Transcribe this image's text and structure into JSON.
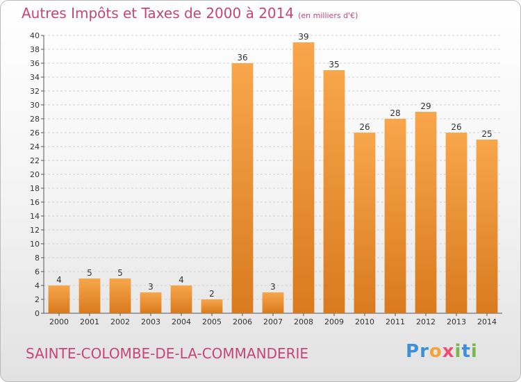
{
  "title": "Autres Impôts et Taxes de 2000 à 2014",
  "subtitle": "(en milliers d'€)",
  "commune": "SAINTE-COLOMBE-DE-LA-COMMANDERIE",
  "brand": {
    "letters": [
      {
        "ch": "P",
        "color": "#3d8fd6"
      },
      {
        "ch": "r",
        "color": "#3d8fd6"
      },
      {
        "ch": "o",
        "color": "#f2a33a"
      },
      {
        "ch": "x",
        "color": "#e94e77"
      },
      {
        "ch": "i",
        "color": "#7ab648"
      },
      {
        "ch": "t",
        "color": "#3d8fd6"
      },
      {
        "ch": "i",
        "color": "#7ab648"
      }
    ]
  },
  "colors": {
    "title": "#c5457a",
    "bar_light": "#f8a64b",
    "bar_dark": "#d97a1e",
    "grid": "#cfcfcf"
  },
  "chart_data": {
    "type": "bar",
    "categories": [
      "2000",
      "2001",
      "2002",
      "2003",
      "2004",
      "2005",
      "2006",
      "2007",
      "2008",
      "2009",
      "2010",
      "2011",
      "2012",
      "2013",
      "2014"
    ],
    "values": [
      4,
      5,
      5,
      3,
      4,
      2,
      36,
      3,
      39,
      35,
      26,
      28,
      29,
      26,
      25
    ],
    "ylim": [
      0,
      40
    ],
    "yticks": [
      0,
      2,
      4,
      6,
      8,
      10,
      12,
      14,
      16,
      18,
      20,
      22,
      24,
      26,
      28,
      30,
      32,
      34,
      36,
      38,
      40
    ],
    "grid": true,
    "title": "Autres Impôts et Taxes de 2000 à 2014",
    "subtitle": "(en milliers d'€)"
  }
}
